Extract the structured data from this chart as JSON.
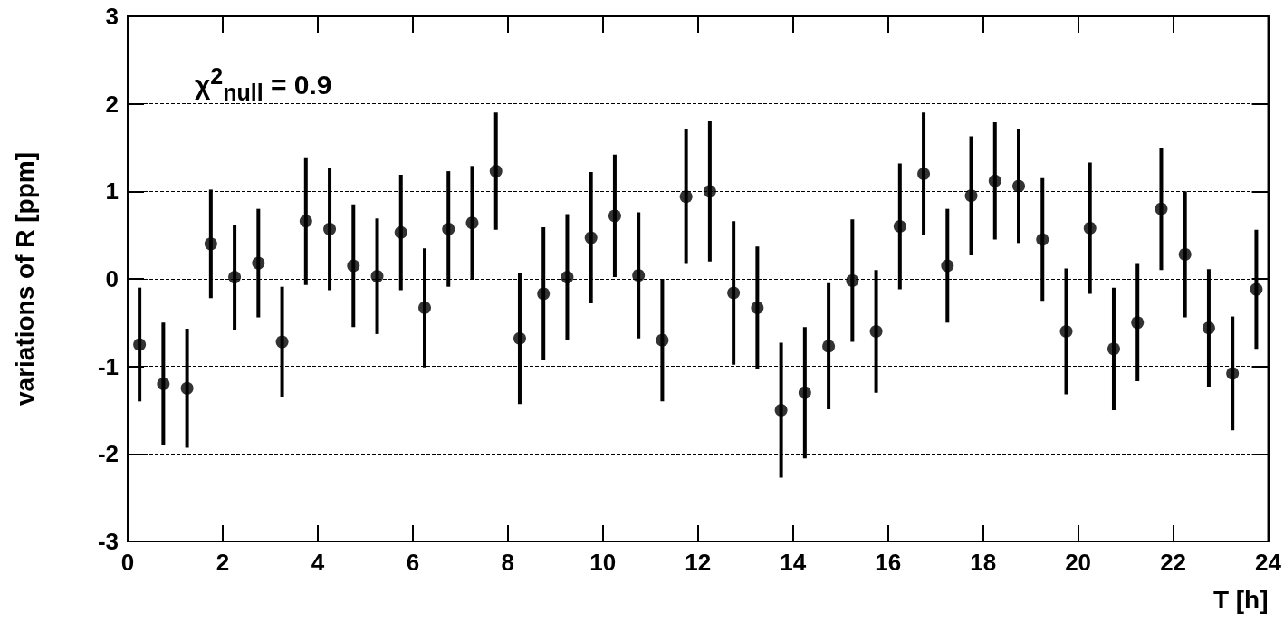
{
  "chart_data": {
    "type": "scatter",
    "xlabel": "T [h]",
    "ylabel": "variations of R [ppm]",
    "annotations": [
      "χ$^{2}$$_{null}$ = 0.9"
    ],
    "x": [
      0.25,
      0.75,
      1.25,
      1.75,
      2.25,
      2.75,
      3.25,
      3.75,
      4.25,
      4.75,
      5.25,
      5.75,
      6.25,
      6.75,
      7.25,
      7.75,
      8.25,
      8.75,
      9.25,
      9.75,
      10.25,
      10.75,
      11.25,
      11.75,
      12.25,
      12.75,
      13.25,
      13.75,
      14.25,
      14.75,
      15.25,
      15.75,
      16.25,
      16.75,
      17.25,
      17.75,
      18.25,
      18.75,
      19.25,
      19.75,
      20.25,
      20.75,
      21.25,
      21.75,
      22.25,
      22.75,
      23.25,
      23.75
    ],
    "values": [
      -0.75,
      -1.2,
      -1.25,
      0.4,
      0.02,
      0.18,
      -0.72,
      0.66,
      0.57,
      0.15,
      0.03,
      0.53,
      -0.33,
      0.57,
      0.64,
      1.23,
      -0.68,
      -0.17,
      0.02,
      0.47,
      0.72,
      0.04,
      -0.7,
      0.94,
      1.0,
      -0.16,
      -0.33,
      -1.5,
      -1.3,
      -0.77,
      -0.02,
      -0.6,
      0.6,
      1.2,
      0.15,
      0.95,
      1.12,
      1.06,
      0.45,
      -0.6,
      0.58,
      -0.8,
      -0.5,
      0.8,
      0.28,
      -0.56,
      -1.08,
      -0.12
    ],
    "errors": [
      0.65,
      0.7,
      0.68,
      0.62,
      0.6,
      0.62,
      0.63,
      0.73,
      0.7,
      0.7,
      0.66,
      0.66,
      0.68,
      0.66,
      0.65,
      0.67,
      0.75,
      0.76,
      0.72,
      0.75,
      0.7,
      0.72,
      0.7,
      0.77,
      0.8,
      0.82,
      0.7,
      0.77,
      0.75,
      0.72,
      0.7,
      0.7,
      0.72,
      0.7,
      0.65,
      0.68,
      0.67,
      0.65,
      0.7,
      0.72,
      0.75,
      0.7,
      0.67,
      0.7,
      0.72,
      0.67,
      0.65,
      0.68
    ],
    "color": "#000000",
    "marker": "circle",
    "xlim": [
      0,
      24
    ],
    "xticks": [
      0,
      2,
      4,
      6,
      8,
      10,
      12,
      14,
      16,
      18,
      20,
      22,
      24
    ],
    "ylim": [
      -3,
      3
    ],
    "yticks": [
      -3,
      -2,
      -1,
      0,
      1,
      2,
      3
    ],
    "grid": "y"
  }
}
